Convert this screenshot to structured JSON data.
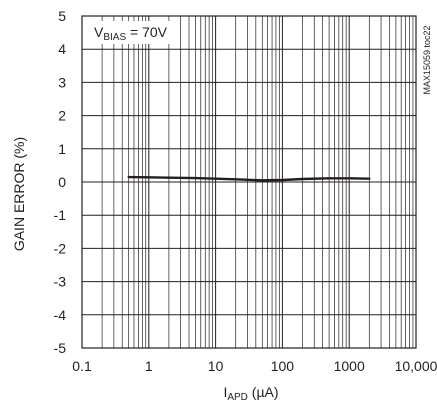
{
  "chart_data": {
    "type": "line",
    "x_scale": "log",
    "xlim": [
      0.1,
      10000
    ],
    "ylim": [
      -5,
      5
    ],
    "x_ticks": [
      0.1,
      1,
      10,
      100,
      1000,
      10000
    ],
    "x_tick_labels": [
      "0.1",
      "1",
      "10",
      "100",
      "1000",
      "10,000"
    ],
    "y_ticks": [
      -5,
      -4,
      -3,
      -2,
      -1,
      0,
      1,
      2,
      3,
      4,
      5
    ],
    "y_tick_labels": [
      "-5",
      "-4",
      "-3",
      "-2",
      "-1",
      "0",
      "1",
      "2",
      "3",
      "4",
      "5"
    ],
    "xlabel": {
      "main": "I",
      "sub": "APD",
      "unit": " (µA)"
    },
    "ylabel": "GAIN ERROR (%)",
    "grid": true,
    "annotation": {
      "main": "V",
      "sub": "BIAS",
      "rest": " = 70V"
    },
    "figure_code": "MAX15059 toc22",
    "series": [
      {
        "x": [
          0.5,
          1,
          2,
          5,
          10,
          20,
          50,
          100,
          200,
          500,
          1000,
          2000
        ],
        "y": [
          0.15,
          0.14,
          0.13,
          0.12,
          0.1,
          0.08,
          0.05,
          0.06,
          0.09,
          0.11,
          0.11,
          0.1
        ]
      }
    ]
  }
}
